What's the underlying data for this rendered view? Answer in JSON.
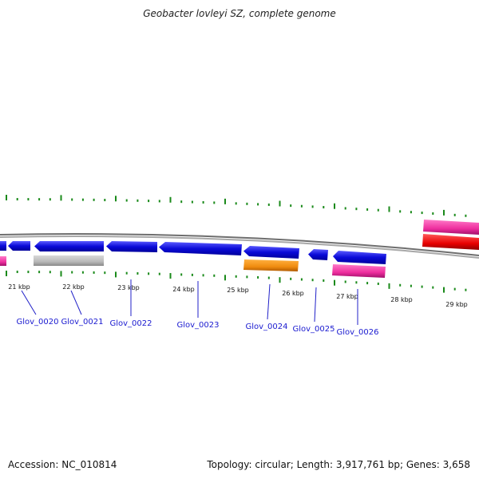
{
  "title": "Geobacter lovleyi SZ, complete genome",
  "footer": {
    "accession": "Accession: NC_010814",
    "summary": "Topology: circular; Length: 3,917,761 bp; Genes: 3,658"
  },
  "scale_labels": [
    "21 kbp",
    "22 kbp",
    "23 kbp",
    "24 kbp",
    "25 kbp",
    "26 kbp",
    "27 kbp",
    "28 kbp",
    "29 kbp"
  ],
  "gene_labels": [
    "Glov_0020",
    "Glov_0021",
    "Glov_0022",
    "Glov_0023",
    "Glov_0024",
    "Glov_0025",
    "Glov_0026"
  ],
  "colors": {
    "cds_forward": "#0a0ad8",
    "rna_gray": "#b8b8b8",
    "orange": "#f08c10",
    "pink": "#ee2e9e",
    "red": "#e80000",
    "backbone": "#7a7a7a",
    "tick": "#1a8a1a",
    "label_blue": "#1a1ad0"
  }
}
